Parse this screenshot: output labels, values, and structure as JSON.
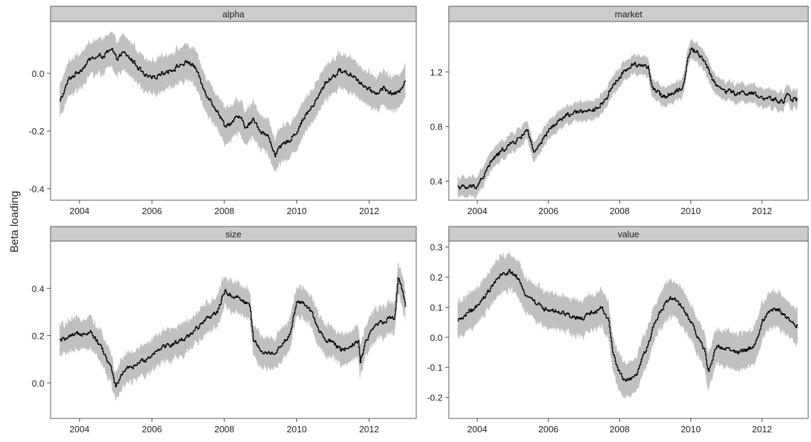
{
  "figure": {
    "ylabel": "Beta loading",
    "band_color": "#c0c0c0",
    "line_color": "#000000",
    "strip_color": "#cccccc",
    "panel_border_color": "#555555"
  },
  "chart_data": [
    {
      "type": "line",
      "title": "alpha",
      "ylabel": "Beta loading",
      "xlim": [
        2003.2,
        2013.3
      ],
      "ylim": [
        -0.44,
        0.18
      ],
      "xticks": [
        2004,
        2006,
        2008,
        2010,
        2012
      ],
      "yticks": [
        -0.4,
        -0.2,
        0.0
      ],
      "ytick_labels": [
        "-0.4",
        "-0.2",
        "0.0"
      ],
      "band_halfwidth": [
        0.05,
        0.07
      ],
      "series": [
        {
          "x": [
            2003.45,
            2003.7,
            2004.0,
            2004.3,
            2004.6,
            2004.9,
            2005.0,
            2005.2,
            2005.5,
            2005.8,
            2006.0,
            2006.2,
            2006.5,
            2006.8,
            2007.0,
            2007.2,
            2007.4,
            2007.6,
            2007.8,
            2008.0,
            2008.2,
            2008.4,
            2008.6,
            2008.8,
            2009.0,
            2009.2,
            2009.4,
            2009.6,
            2009.8,
            2010.0,
            2010.2,
            2010.4,
            2010.6,
            2010.8,
            2011.0,
            2011.2,
            2011.4,
            2011.6,
            2011.8,
            2012.0,
            2012.2,
            2012.4,
            2012.6,
            2012.8,
            2013.0
          ],
          "y": [
            -0.1,
            -0.02,
            0.01,
            0.05,
            0.06,
            0.08,
            0.05,
            0.07,
            0.04,
            -0.01,
            -0.02,
            0.0,
            0.01,
            0.03,
            0.04,
            0.02,
            -0.05,
            -0.09,
            -0.13,
            -0.18,
            -0.17,
            -0.15,
            -0.19,
            -0.16,
            -0.2,
            -0.22,
            -0.28,
            -0.25,
            -0.23,
            -0.2,
            -0.15,
            -0.12,
            -0.08,
            -0.03,
            -0.01,
            0.01,
            0.0,
            -0.01,
            -0.04,
            -0.06,
            -0.07,
            -0.05,
            -0.07,
            -0.07,
            -0.02
          ]
        }
      ]
    },
    {
      "type": "line",
      "title": "market",
      "xlim": [
        2003.2,
        2013.3
      ],
      "ylim": [
        0.26,
        1.57
      ],
      "xticks": [
        2004,
        2006,
        2008,
        2010,
        2012
      ],
      "yticks": [
        0.4,
        0.8,
        1.2
      ],
      "ytick_labels": [
        "0.4",
        "0.8",
        "1.2"
      ],
      "band_halfwidth": [
        0.06,
        0.08
      ],
      "series": [
        {
          "x": [
            2003.45,
            2003.7,
            2004.0,
            2004.2,
            2004.4,
            2004.6,
            2004.8,
            2005.0,
            2005.2,
            2005.4,
            2005.6,
            2005.8,
            2006.0,
            2006.2,
            2006.5,
            2006.8,
            2007.0,
            2007.2,
            2007.4,
            2007.6,
            2007.8,
            2008.0,
            2008.2,
            2008.4,
            2008.6,
            2008.8,
            2008.9,
            2009.2,
            2009.5,
            2009.8,
            2009.9,
            2010.0,
            2010.2,
            2010.4,
            2010.6,
            2010.8,
            2011.0,
            2011.3,
            2011.6,
            2011.8,
            2012.0,
            2012.3,
            2012.6,
            2012.7,
            2012.8,
            2013.0
          ],
          "y": [
            0.36,
            0.35,
            0.37,
            0.45,
            0.55,
            0.6,
            0.65,
            0.68,
            0.72,
            0.78,
            0.6,
            0.68,
            0.77,
            0.82,
            0.88,
            0.9,
            0.92,
            0.9,
            0.95,
            1.0,
            1.1,
            1.17,
            1.22,
            1.26,
            1.25,
            1.24,
            1.08,
            1.02,
            1.05,
            1.1,
            1.3,
            1.37,
            1.34,
            1.27,
            1.15,
            1.08,
            1.06,
            1.04,
            1.05,
            1.03,
            1.0,
            1.0,
            0.98,
            1.06,
            1.0,
            1.0
          ]
        }
      ]
    },
    {
      "type": "line",
      "title": "size",
      "xlim": [
        2003.2,
        2013.3
      ],
      "ylim": [
        -0.15,
        0.6
      ],
      "xticks": [
        2004,
        2006,
        2008,
        2010,
        2012
      ],
      "yticks": [
        0.0,
        0.2,
        0.4
      ],
      "ytick_labels": [
        "0.0",
        "0.2",
        "0.4"
      ],
      "band_halfwidth": [
        0.05,
        0.08
      ],
      "series": [
        {
          "x": [
            2003.45,
            2003.7,
            2004.0,
            2004.3,
            2004.6,
            2004.9,
            2005.0,
            2005.2,
            2005.5,
            2005.8,
            2006.0,
            2006.2,
            2006.5,
            2006.8,
            2007.0,
            2007.2,
            2007.4,
            2007.6,
            2007.8,
            2008.0,
            2008.2,
            2008.4,
            2008.7,
            2008.8,
            2009.0,
            2009.2,
            2009.4,
            2009.6,
            2009.8,
            2010.0,
            2010.2,
            2010.4,
            2010.6,
            2010.8,
            2011.0,
            2011.2,
            2011.5,
            2011.7,
            2011.75,
            2011.9,
            2012.2,
            2012.5,
            2012.7,
            2012.8,
            2012.9,
            2013.0
          ],
          "y": [
            0.18,
            0.19,
            0.21,
            0.22,
            0.15,
            0.05,
            -0.02,
            0.05,
            0.07,
            0.1,
            0.12,
            0.15,
            0.16,
            0.18,
            0.2,
            0.23,
            0.25,
            0.28,
            0.3,
            0.39,
            0.37,
            0.36,
            0.33,
            0.18,
            0.14,
            0.12,
            0.13,
            0.17,
            0.2,
            0.35,
            0.33,
            0.3,
            0.22,
            0.18,
            0.17,
            0.14,
            0.16,
            0.18,
            0.09,
            0.18,
            0.25,
            0.27,
            0.28,
            0.45,
            0.4,
            0.33
          ]
        }
      ]
    },
    {
      "type": "line",
      "title": "value",
      "xlim": [
        2003.2,
        2013.3
      ],
      "ylim": [
        -0.27,
        0.32
      ],
      "xticks": [
        2004,
        2006,
        2008,
        2010,
        2012
      ],
      "yticks": [
        -0.2,
        -0.1,
        0.0,
        0.1,
        0.2,
        0.3
      ],
      "ytick_labels": [
        "-0.2",
        "-0.1",
        "0.0",
        "0.1",
        "0.2",
        "0.3"
      ],
      "band_halfwidth": [
        0.05,
        0.07
      ],
      "series": [
        {
          "x": [
            2003.45,
            2003.7,
            2004.0,
            2004.3,
            2004.6,
            2004.9,
            2005.1,
            2005.3,
            2005.5,
            2005.8,
            2006.0,
            2006.3,
            2006.6,
            2006.9,
            2007.2,
            2007.5,
            2007.7,
            2007.8,
            2008.0,
            2008.1,
            2008.3,
            2008.5,
            2008.7,
            2009.0,
            2009.2,
            2009.4,
            2009.6,
            2009.8,
            2010.0,
            2010.2,
            2010.4,
            2010.5,
            2010.7,
            2011.0,
            2011.3,
            2011.6,
            2011.8,
            2012.0,
            2012.2,
            2012.5,
            2012.8,
            2013.0
          ],
          "y": [
            0.05,
            0.08,
            0.1,
            0.15,
            0.2,
            0.22,
            0.2,
            0.15,
            0.13,
            0.1,
            0.09,
            0.08,
            0.07,
            0.06,
            0.08,
            0.1,
            0.05,
            -0.05,
            -0.12,
            -0.14,
            -0.14,
            -0.12,
            -0.05,
            0.05,
            0.1,
            0.13,
            0.12,
            0.09,
            0.05,
            0.0,
            -0.05,
            -0.12,
            -0.03,
            -0.04,
            -0.05,
            -0.04,
            -0.03,
            0.05,
            0.09,
            0.09,
            0.05,
            0.04
          ]
        }
      ]
    }
  ]
}
